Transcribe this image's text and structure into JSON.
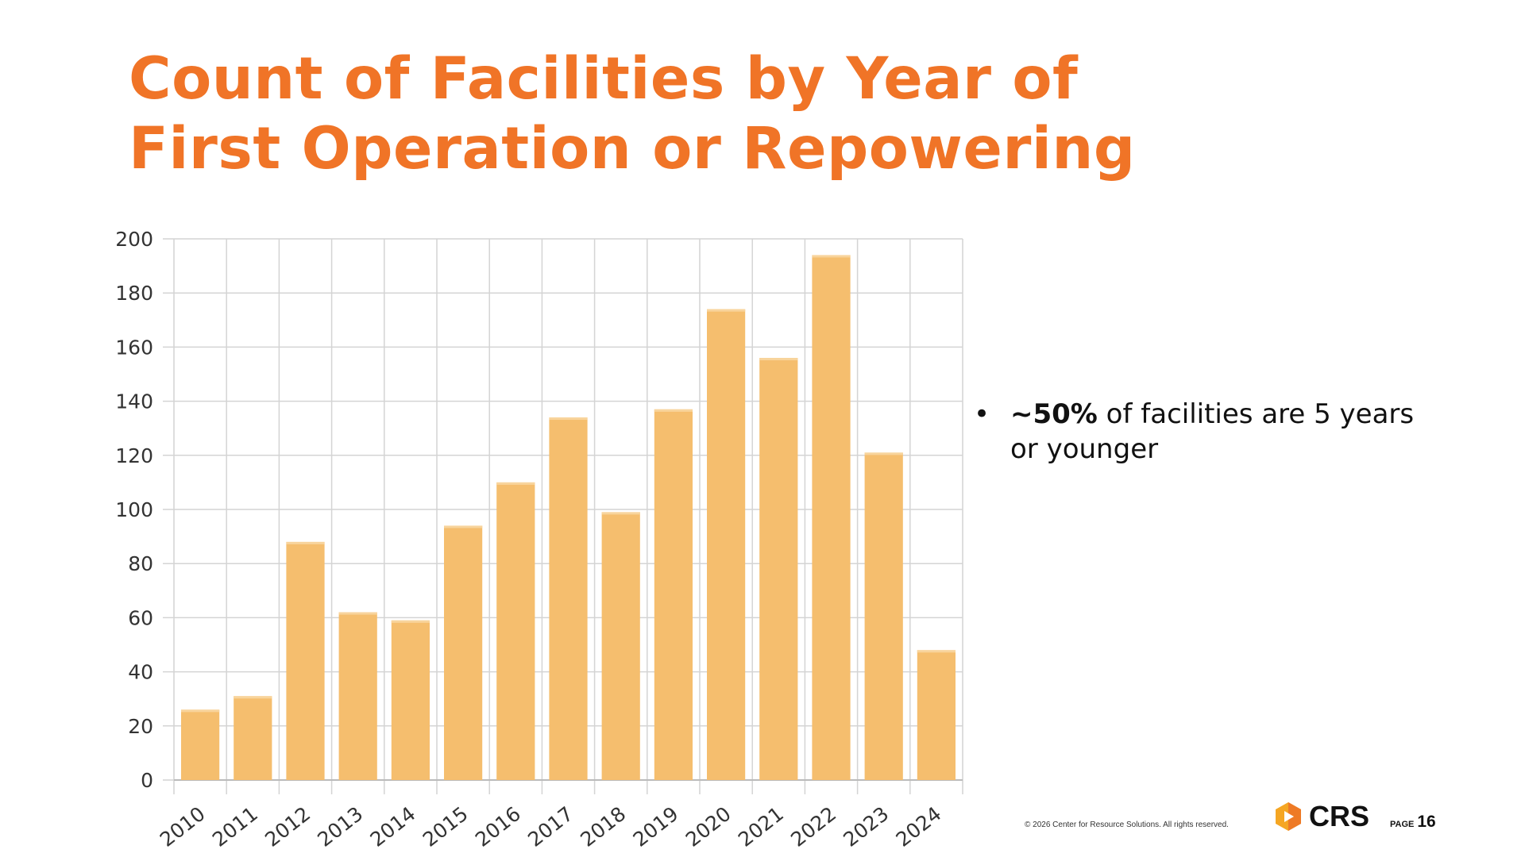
{
  "title": "Count of Facilities by Year of First Operation or Repowering",
  "bullet": {
    "bold": "~50%",
    "text": " of facilities are 5 years or younger"
  },
  "footer": {
    "copyright": "© 2026 Center for Resource Solutions.  All rights reserved.",
    "logo": "CRS",
    "page_label": "PAGE",
    "page_number": "16"
  },
  "colors": {
    "title": "#F07427",
    "bar": "#F5BE6E",
    "grid": "#D4D4D4"
  },
  "chart_data": {
    "type": "bar",
    "title": "",
    "xlabel": "",
    "ylabel": "",
    "categories": [
      "2010",
      "2011",
      "2012",
      "2013",
      "2014",
      "2015",
      "2016",
      "2017",
      "2018",
      "2019",
      "2020",
      "2021",
      "2022",
      "2023",
      "2024"
    ],
    "values": [
      26,
      31,
      88,
      62,
      59,
      94,
      110,
      134,
      99,
      137,
      174,
      156,
      194,
      121,
      48
    ],
    "ylim": [
      0,
      200
    ],
    "yticks": [
      0,
      20,
      40,
      60,
      80,
      100,
      120,
      140,
      160,
      180,
      200
    ],
    "grid": true,
    "legend": "none"
  }
}
